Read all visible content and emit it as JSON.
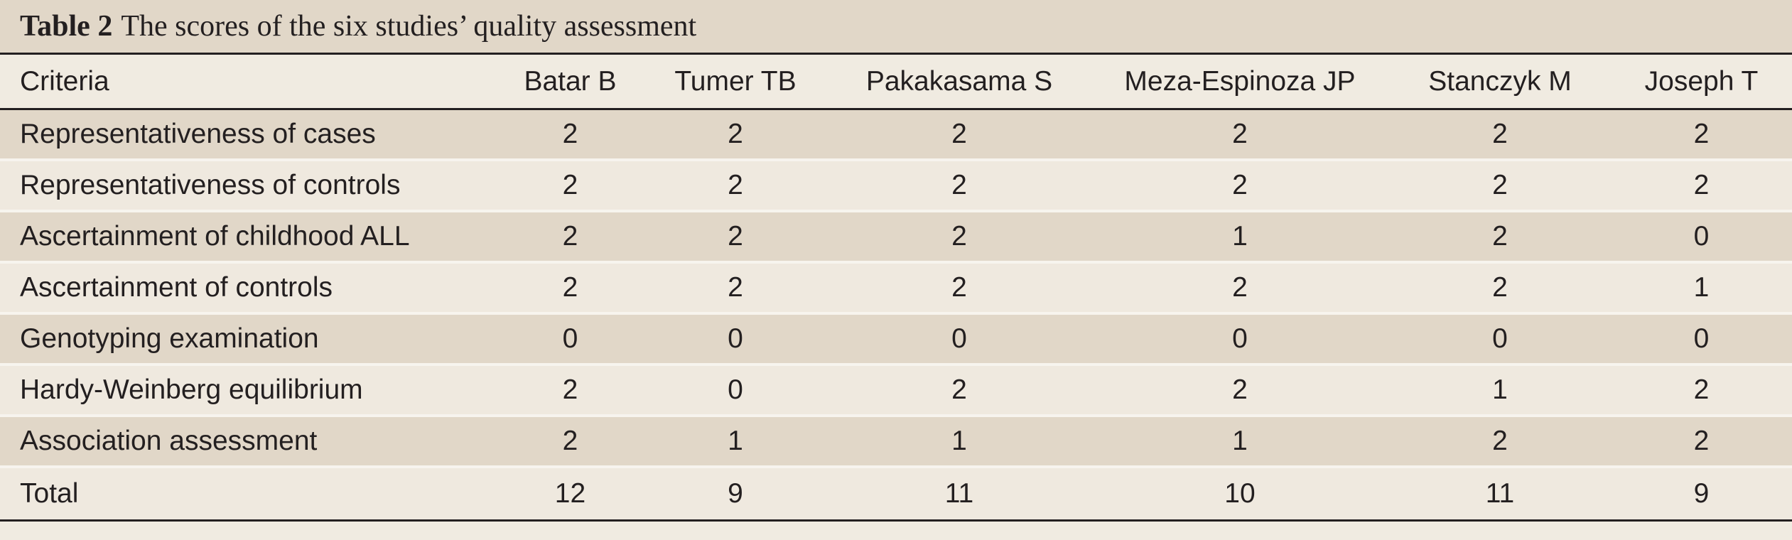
{
  "caption": {
    "label": "Table 2",
    "title": "The scores of the six studies’ quality assessment"
  },
  "header": [
    "Criteria",
    "Batar B",
    "Tumer TB",
    "Pakakasama S",
    "Meza-Espinoza JP",
    "Stanczyk M",
    "Joseph T"
  ],
  "rows": [
    [
      "Representativeness of cases",
      "2",
      "2",
      "2",
      "2",
      "2",
      "2"
    ],
    [
      "Representativeness of controls",
      "2",
      "2",
      "2",
      "2",
      "2",
      "2"
    ],
    [
      "Ascertainment of childhood ALL",
      "2",
      "2",
      "2",
      "1",
      "2",
      "0"
    ],
    [
      "Ascertainment of controls",
      "2",
      "2",
      "2",
      "2",
      "2",
      "1"
    ],
    [
      "Genotyping examination",
      "0",
      "0",
      "0",
      "0",
      "0",
      "0"
    ],
    [
      "Hardy-Weinberg equilibrium",
      "2",
      "0",
      "2",
      "2",
      "1",
      "2"
    ],
    [
      "Association assessment",
      "2",
      "1",
      "1",
      "1",
      "2",
      "2"
    ],
    [
      "Total",
      "12",
      "9",
      "11",
      "10",
      "11",
      "9"
    ]
  ],
  "colors": {
    "shade": "#e1d7c8",
    "plain": "#efe9df",
    "rule": "#231f20"
  }
}
